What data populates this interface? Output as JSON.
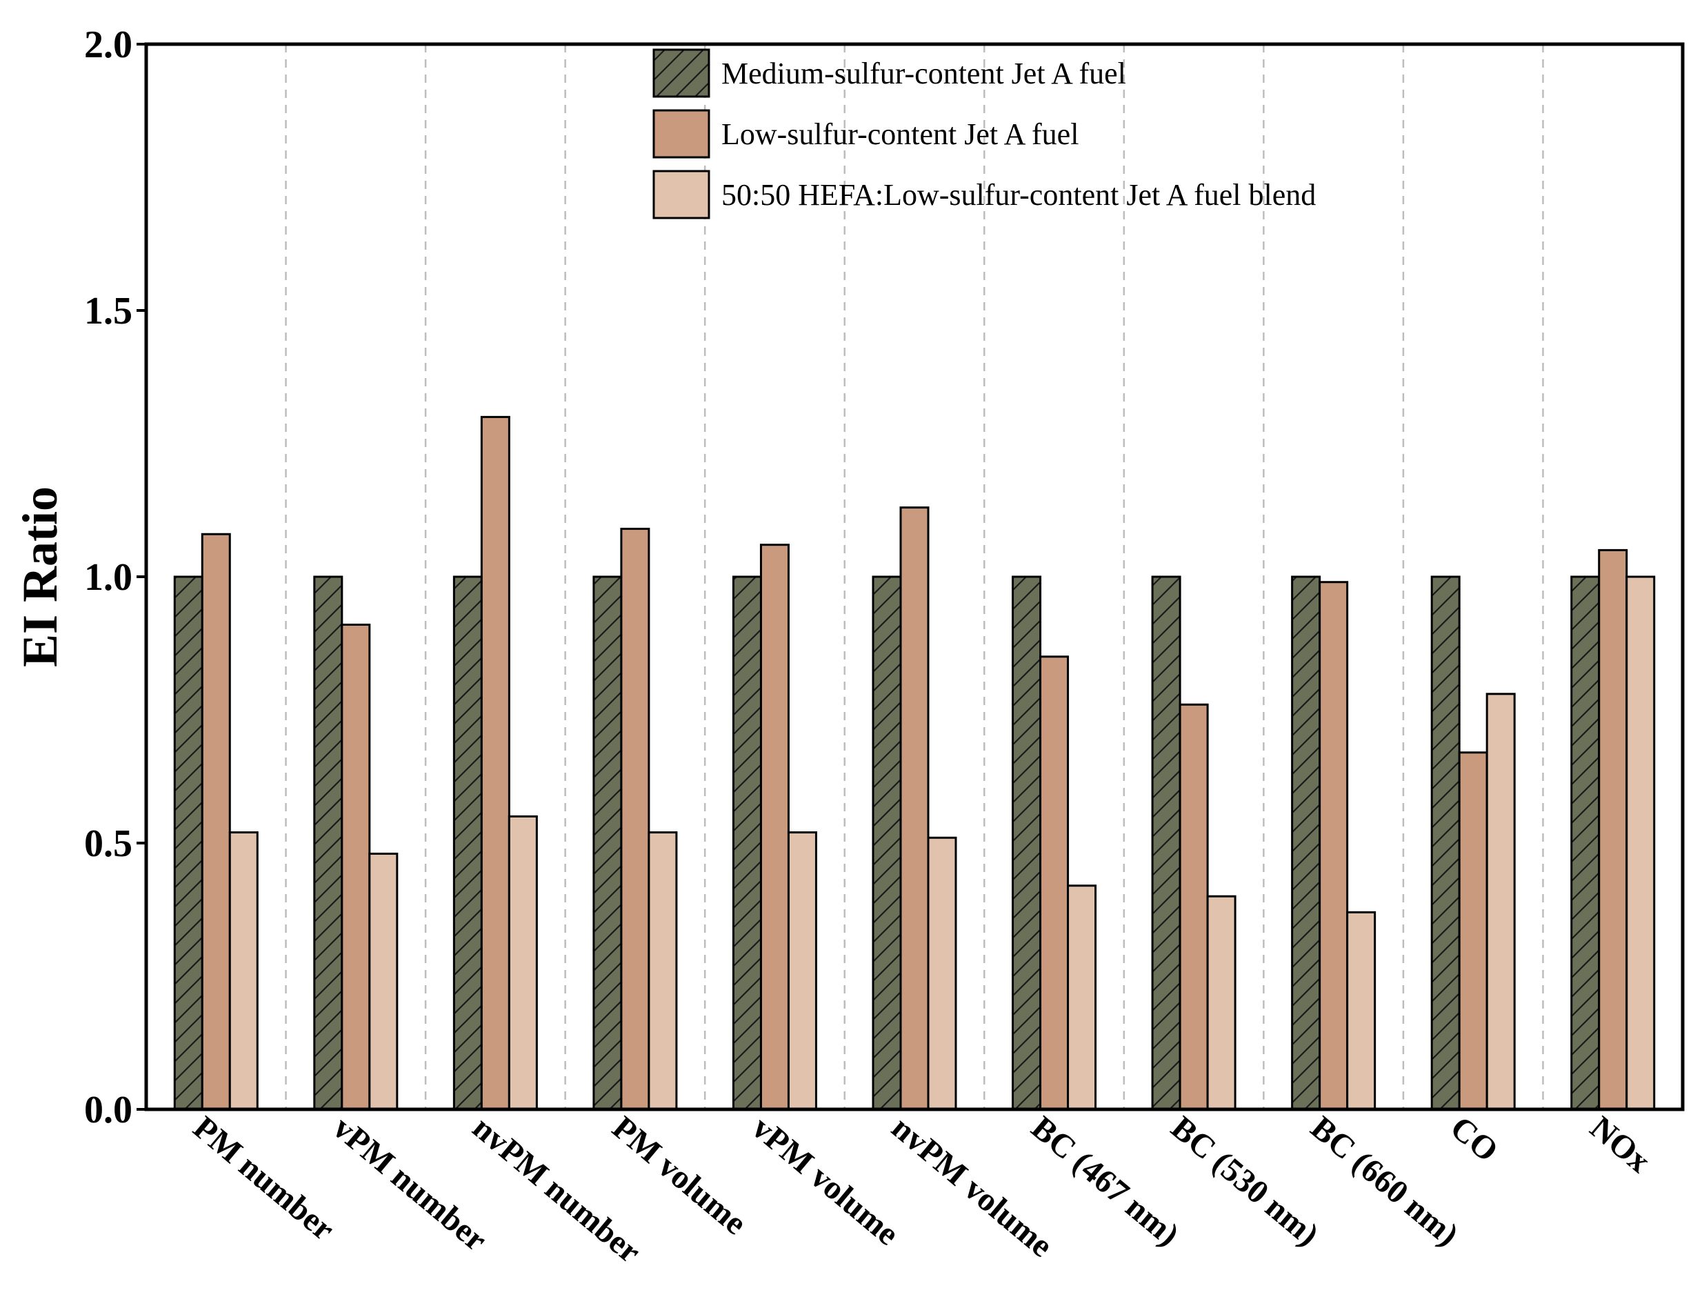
{
  "chart_data": {
    "type": "bar",
    "title": "",
    "xlabel": "",
    "ylabel": "EI Ratio",
    "ylim": [
      0,
      2.0
    ],
    "yticks": [
      "0.0",
      "0.5",
      "1.0",
      "1.5",
      "2.0"
    ],
    "grid": "vertical dashed separators between categories",
    "legend_position": "top-center",
    "categories": [
      "PM number",
      "vPM number",
      "nvPM number",
      "PM volume",
      "vPM volume",
      "nvPM volume",
      "BC (467 nm)",
      "BC (530 nm)",
      "BC (660 nm)",
      "CO",
      "NOx"
    ],
    "series": [
      {
        "name": "Medium-sulfur-content Jet A fuel",
        "color": "#6b7059",
        "hatch": true,
        "values": [
          1.0,
          1.0,
          1.0,
          1.0,
          1.0,
          1.0,
          1.0,
          1.0,
          1.0,
          1.0,
          1.0
        ]
      },
      {
        "name": "Low-sulfur-content Jet A fuel",
        "color": "#c99a7e",
        "hatch": false,
        "values": [
          1.08,
          0.91,
          1.3,
          1.09,
          1.06,
          1.13,
          0.85,
          0.76,
          0.99,
          0.67,
          1.05
        ]
      },
      {
        "name": "50:50 HEFA:Low-sulfur-content Jet A fuel blend",
        "color": "#e1c3ad",
        "hatch": false,
        "values": [
          0.52,
          0.48,
          0.55,
          0.52,
          0.52,
          0.51,
          0.42,
          0.4,
          0.37,
          0.78,
          1.0
        ]
      }
    ]
  }
}
